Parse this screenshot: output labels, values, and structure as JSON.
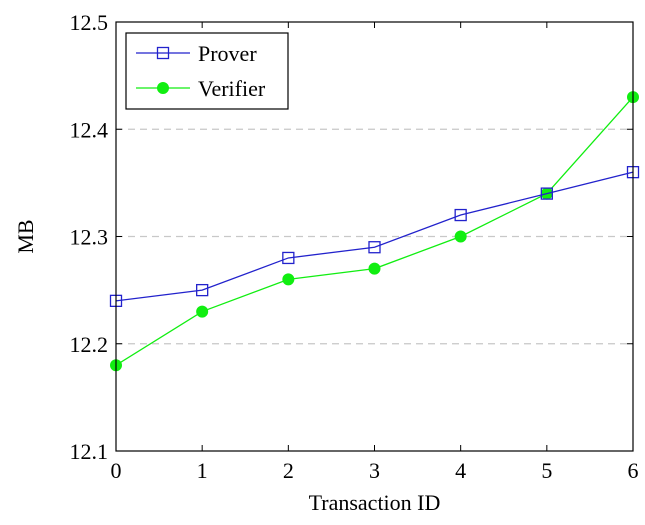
{
  "chart_data": {
    "type": "line",
    "xlabel": "Transaction ID",
    "ylabel": "MB",
    "x": [
      0,
      1,
      2,
      3,
      4,
      5,
      6
    ],
    "xlim": [
      0,
      6
    ],
    "ylim": [
      12.1,
      12.5
    ],
    "xticks": [
      "0",
      "1",
      "2",
      "3",
      "4",
      "5",
      "6"
    ],
    "yticks": [
      "12.1",
      "12.2",
      "12.3",
      "12.4",
      "12.5"
    ],
    "ytick_values": [
      12.1,
      12.2,
      12.3,
      12.4,
      12.5
    ],
    "grid": "horizontal dashed",
    "legend_position": "top-left",
    "series": [
      {
        "name": "Prover",
        "values": [
          12.24,
          12.25,
          12.28,
          12.29,
          12.32,
          12.34,
          12.36
        ],
        "color": "#2222cc",
        "marker": "square-open"
      },
      {
        "name": "Verifier",
        "values": [
          12.18,
          12.23,
          12.26,
          12.27,
          12.3,
          12.34,
          12.43
        ],
        "color": "#11ee11",
        "marker": "circle-filled"
      }
    ]
  }
}
